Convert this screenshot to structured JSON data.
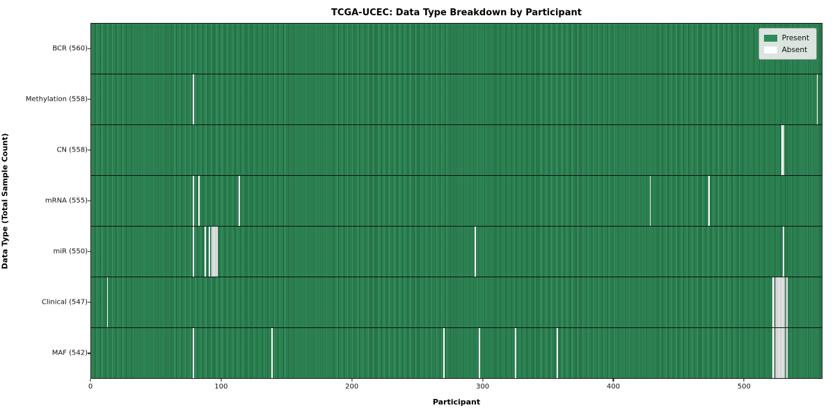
{
  "title": "TCGA-UCEC: Data Type Breakdown by Participant",
  "axes": {
    "xlabel": "Participant",
    "ylabel": "Data Type (Total Sample Count)"
  },
  "legend": {
    "items": [
      {
        "label": "Present",
        "color": "#2e8b57"
      },
      {
        "label": "Absent",
        "color": "#ffffff"
      }
    ]
  },
  "colors": {
    "present": "#2e8b57",
    "absent": "#ffffff",
    "plot_border": "#141414"
  },
  "chart_data": {
    "type": "heatmap",
    "title": "TCGA-UCEC: Data Type Breakdown by Participant",
    "xlabel": "Participant",
    "ylabel": "Data Type (Total Sample Count)",
    "x_ticks": [
      0,
      100,
      200,
      300,
      400,
      500
    ],
    "x_max": 560,
    "grid": false,
    "legend_position": "upper right",
    "value_encoding": {
      "present": "#2e8b57",
      "absent": "#ffffff"
    },
    "rows": [
      {
        "name": "BCR",
        "label": "BCR (560)",
        "total": 560,
        "absent": []
      },
      {
        "name": "Methylation",
        "label": "Methylation (558)",
        "total": 558,
        "absent": [
          78,
          556
        ]
      },
      {
        "name": "CN",
        "label": "CN (558)",
        "total": 558,
        "absent": [
          529,
          530
        ]
      },
      {
        "name": "mRNA",
        "label": "mRNA (555)",
        "total": 555,
        "absent": [
          78,
          82,
          113,
          428,
          473
        ]
      },
      {
        "name": "miR",
        "label": "miR (550)",
        "total": 550,
        "absent": [
          78,
          87,
          90,
          92,
          93,
          94,
          95,
          96,
          294,
          530
        ]
      },
      {
        "name": "Clinical",
        "label": "Clinical (547)",
        "total": 547,
        "absent": [
          12,
          522,
          523,
          524,
          525,
          526,
          527,
          528,
          529,
          530,
          531,
          532,
          533
        ]
      },
      {
        "name": "MAF",
        "label": "MAF (542)",
        "total": 542,
        "absent": [
          78,
          138,
          270,
          297,
          325,
          357,
          522,
          523,
          524,
          525,
          526,
          527,
          528,
          529,
          530,
          531,
          532,
          533
        ]
      }
    ]
  }
}
